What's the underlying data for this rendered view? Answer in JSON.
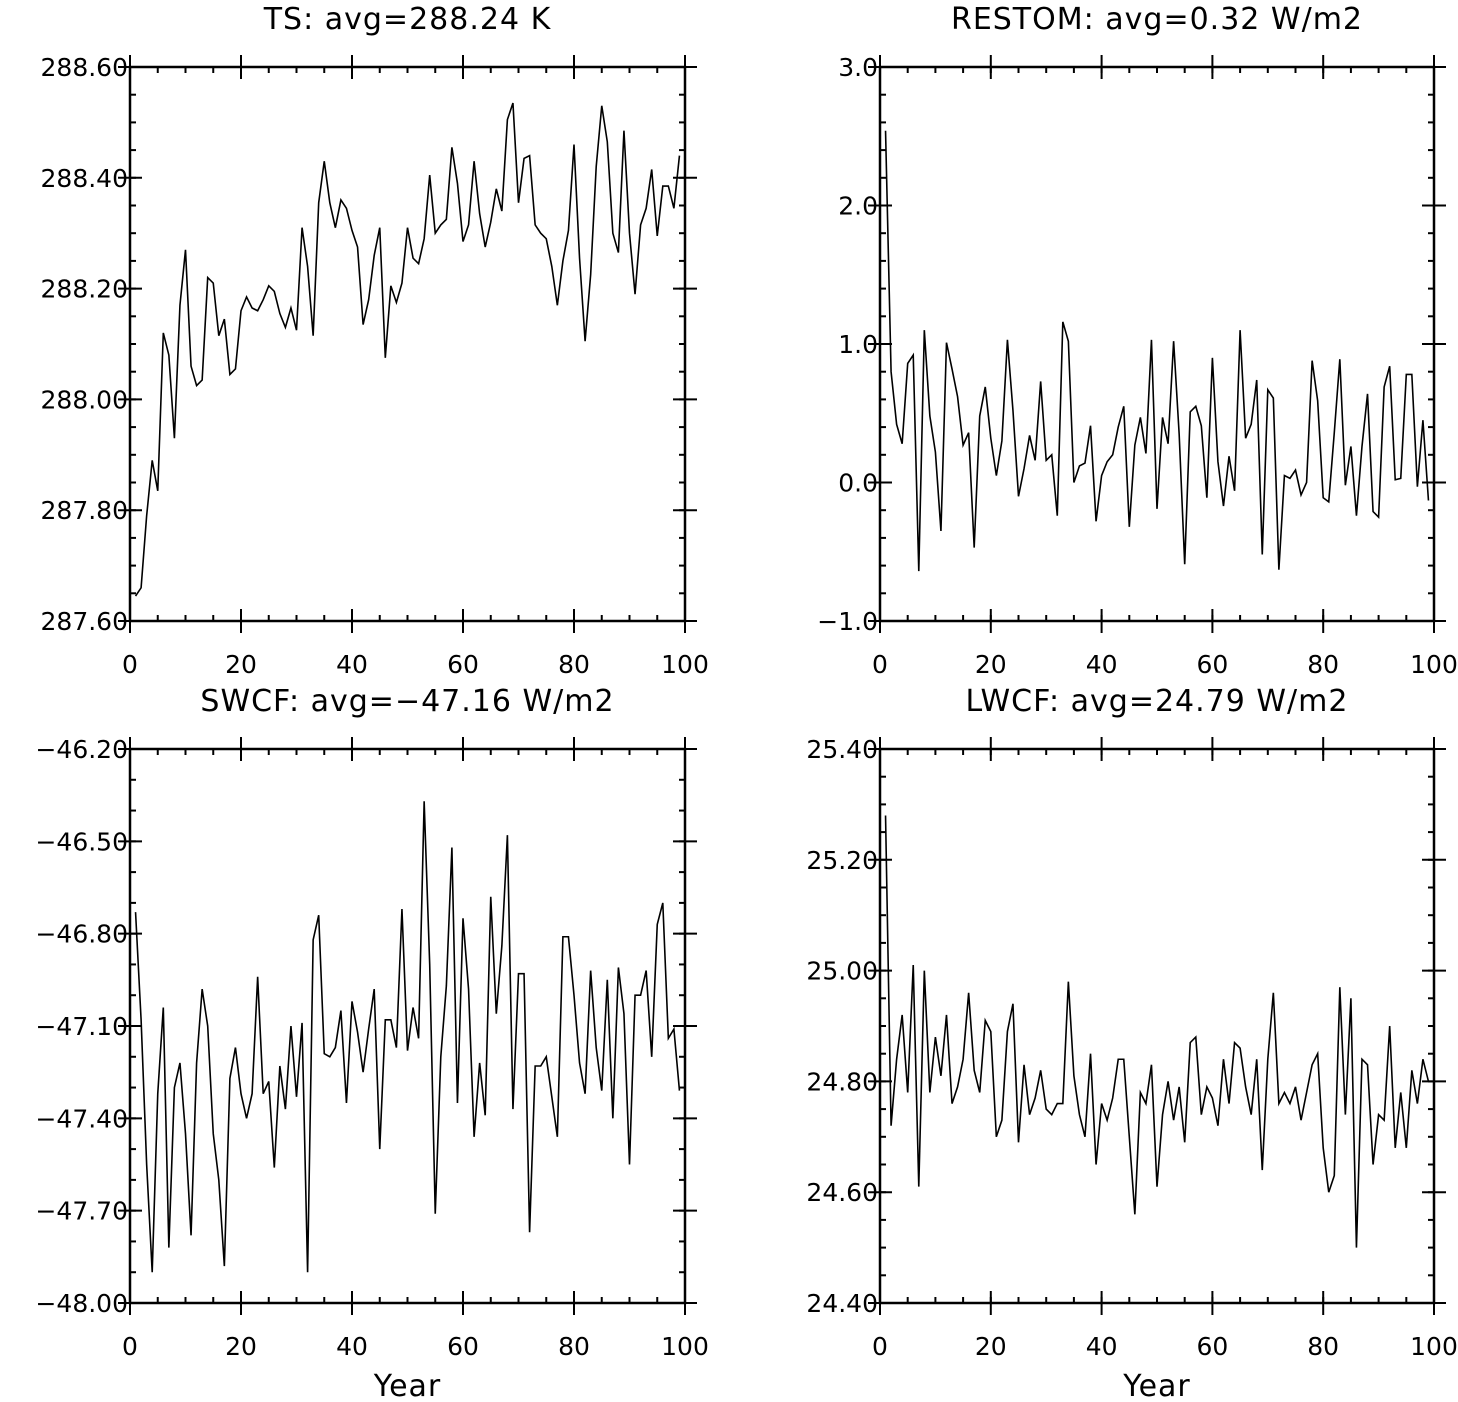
{
  "chart_data": [
    {
      "id": "ts",
      "type": "line",
      "title": "TS: avg=288.24 K",
      "xlabel": "",
      "ylabel": "",
      "xlim": [
        0,
        100
      ],
      "ylim": [
        287.6,
        288.6
      ],
      "xticks": [
        0,
        20,
        40,
        60,
        80,
        100
      ],
      "xtick_labels": [
        "0",
        "20",
        "40",
        "60",
        "80",
        "100"
      ],
      "yticks": [
        287.6,
        287.8,
        288.0,
        288.2,
        288.4,
        288.6
      ],
      "ytick_labels": [
        "287.60",
        "287.80",
        "288.00",
        "288.20",
        "288.40",
        "288.60"
      ],
      "y_minor_step": 0.05,
      "x_minor_step": 5,
      "grid": false,
      "series": [
        {
          "values": [
            287.645,
            287.66,
            287.79,
            287.89,
            287.835,
            288.12,
            288.08,
            287.93,
            288.17,
            288.27,
            288.06,
            288.025,
            288.035,
            288.22,
            288.21,
            288.115,
            288.145,
            288.045,
            288.055,
            288.16,
            288.185,
            288.165,
            288.16,
            288.18,
            288.205,
            288.195,
            288.155,
            288.13,
            288.165,
            288.125,
            288.31,
            288.24,
            288.115,
            288.355,
            288.43,
            288.355,
            288.31,
            288.36,
            288.345,
            288.305,
            288.275,
            288.135,
            288.18,
            288.26,
            288.31,
            288.075,
            288.205,
            288.175,
            288.21,
            288.31,
            288.255,
            288.245,
            288.29,
            288.405,
            288.3,
            288.315,
            288.325,
            288.455,
            288.39,
            288.285,
            288.315,
            288.43,
            288.335,
            288.275,
            288.32,
            288.38,
            288.34,
            288.505,
            288.535,
            288.355,
            288.435,
            288.44,
            288.315,
            288.3,
            288.29,
            288.24,
            288.17,
            288.25,
            288.305,
            288.46,
            288.255,
            288.105,
            288.225,
            288.42,
            288.53,
            288.465,
            288.3,
            288.265,
            288.485,
            288.3,
            288.19,
            288.315,
            288.345,
            288.415,
            288.295,
            288.385,
            288.385,
            288.345,
            288.44
          ]
        }
      ]
    },
    {
      "id": "restom",
      "type": "line",
      "title": "RESTOM: avg=0.32 W/m2",
      "xlabel": "",
      "ylabel": "",
      "xlim": [
        0,
        100
      ],
      "ylim": [
        -1.0,
        3.0
      ],
      "xticks": [
        0,
        20,
        40,
        60,
        80,
        100
      ],
      "xtick_labels": [
        "0",
        "20",
        "40",
        "60",
        "80",
        "100"
      ],
      "yticks": [
        -1.0,
        0.0,
        1.0,
        2.0,
        3.0
      ],
      "ytick_labels": [
        "−1.0",
        "0.0",
        "1.0",
        "2.0",
        "3.0"
      ],
      "y_minor_step": 0.2,
      "x_minor_step": 5,
      "grid": false,
      "series": [
        {
          "values": [
            2.54,
            0.8,
            0.42,
            0.28,
            0.86,
            0.92,
            -0.64,
            1.1,
            0.48,
            0.22,
            -0.35,
            1.01,
            0.82,
            0.62,
            0.27,
            0.36,
            -0.47,
            0.48,
            0.69,
            0.32,
            0.05,
            0.3,
            1.03,
            0.52,
            -0.1,
            0.1,
            0.34,
            0.16,
            0.73,
            0.16,
            0.2,
            -0.24,
            1.16,
            1.02,
            0.0,
            0.12,
            0.14,
            0.41,
            -0.28,
            0.05,
            0.15,
            0.2,
            0.4,
            0.55,
            -0.32,
            0.27,
            0.47,
            0.21,
            1.03,
            -0.19,
            0.47,
            0.28,
            1.02,
            0.35,
            -0.59,
            0.51,
            0.55,
            0.41,
            -0.11,
            0.9,
            0.15,
            -0.17,
            0.19,
            -0.06,
            1.1,
            0.32,
            0.42,
            0.74,
            -0.52,
            0.67,
            0.61,
            -0.63,
            0.05,
            0.03,
            0.09,
            -0.09,
            0.0,
            0.88,
            0.59,
            -0.11,
            -0.14,
            0.36,
            0.89,
            -0.02,
            0.26,
            -0.24,
            0.26,
            0.64,
            -0.21,
            -0.25,
            0.69,
            0.84,
            0.02,
            0.03,
            0.78,
            0.78,
            -0.03,
            0.45,
            -0.13
          ]
        }
      ]
    },
    {
      "id": "swcf",
      "type": "line",
      "title": "SWCF: avg=−47.16 W/m2",
      "xlabel": "Year",
      "ylabel": "",
      "xlim": [
        0,
        100
      ],
      "ylim": [
        -48.0,
        -46.2
      ],
      "xticks": [
        0,
        20,
        40,
        60,
        80,
        100
      ],
      "xtick_labels": [
        "0",
        "20",
        "40",
        "60",
        "80",
        "100"
      ],
      "yticks": [
        -48.0,
        -47.7,
        -47.4,
        -47.1,
        -46.8,
        -46.5,
        -46.2
      ],
      "ytick_labels": [
        "−48.00",
        "−47.70",
        "−47.40",
        "−47.10",
        "−46.80",
        "−46.50",
        "−46.20"
      ],
      "y_minor_step": 0.1,
      "x_minor_step": 5,
      "grid": false,
      "series": [
        {
          "values": [
            -46.73,
            -47.08,
            -47.55,
            -47.9,
            -47.32,
            -47.04,
            -47.82,
            -47.3,
            -47.22,
            -47.45,
            -47.78,
            -47.22,
            -46.98,
            -47.1,
            -47.45,
            -47.6,
            -47.88,
            -47.27,
            -47.17,
            -47.32,
            -47.4,
            -47.32,
            -46.94,
            -47.32,
            -47.28,
            -47.56,
            -47.23,
            -47.37,
            -47.1,
            -47.33,
            -47.09,
            -47.9,
            -46.82,
            -46.74,
            -47.19,
            -47.2,
            -47.17,
            -47.05,
            -47.35,
            -47.02,
            -47.12,
            -47.25,
            -47.11,
            -46.98,
            -47.5,
            -47.08,
            -47.08,
            -47.17,
            -46.72,
            -47.18,
            -47.04,
            -47.14,
            -46.37,
            -46.9,
            -47.71,
            -47.2,
            -46.97,
            -46.52,
            -47.35,
            -46.75,
            -46.98,
            -47.46,
            -47.22,
            -47.39,
            -46.68,
            -47.06,
            -46.84,
            -46.48,
            -47.37,
            -46.93,
            -46.93,
            -47.77,
            -47.23,
            -47.23,
            -47.2,
            -47.33,
            -47.46,
            -46.81,
            -46.81,
            -47.0,
            -47.22,
            -47.32,
            -46.92,
            -47.17,
            -47.31,
            -46.95,
            -47.4,
            -46.91,
            -47.06,
            -47.55,
            -47.0,
            -47.0,
            -46.92,
            -47.2,
            -46.77,
            -46.7,
            -47.14,
            -47.11,
            -47.31
          ]
        }
      ]
    },
    {
      "id": "lwcf",
      "type": "line",
      "title": "LWCF: avg=24.79 W/m2",
      "xlabel": "Year",
      "ylabel": "",
      "xlim": [
        0,
        100
      ],
      "ylim": [
        24.4,
        25.4
      ],
      "xticks": [
        0,
        20,
        40,
        60,
        80,
        100
      ],
      "xtick_labels": [
        "0",
        "20",
        "40",
        "60",
        "80",
        "100"
      ],
      "yticks": [
        24.4,
        24.6,
        24.8,
        25.0,
        25.2,
        25.4
      ],
      "ytick_labels": [
        "24.40",
        "24.60",
        "24.80",
        "25.00",
        "25.20",
        "25.40"
      ],
      "y_minor_step": 0.05,
      "x_minor_step": 5,
      "grid": false,
      "series": [
        {
          "values": [
            25.28,
            24.72,
            24.84,
            24.92,
            24.78,
            25.01,
            24.61,
            25.0,
            24.78,
            24.88,
            24.81,
            24.92,
            24.76,
            24.79,
            24.84,
            24.96,
            24.82,
            24.78,
            24.91,
            24.89,
            24.7,
            24.73,
            24.89,
            24.94,
            24.69,
            24.83,
            24.74,
            24.77,
            24.82,
            24.75,
            24.74,
            24.76,
            24.76,
            24.98,
            24.81,
            24.74,
            24.7,
            24.85,
            24.65,
            24.76,
            24.73,
            24.77,
            24.84,
            24.84,
            24.7,
            24.56,
            24.78,
            24.76,
            24.83,
            24.61,
            24.74,
            24.8,
            24.73,
            24.79,
            24.69,
            24.87,
            24.88,
            24.74,
            24.79,
            24.77,
            24.72,
            24.84,
            24.76,
            24.87,
            24.86,
            24.79,
            24.74,
            24.84,
            24.64,
            24.84,
            24.96,
            24.76,
            24.78,
            24.76,
            24.79,
            24.73,
            24.78,
            24.83,
            24.85,
            24.68,
            24.6,
            24.63,
            24.97,
            24.74,
            24.95,
            24.5,
            24.84,
            24.83,
            24.65,
            24.74,
            24.73,
            24.9,
            24.68,
            24.78,
            24.68,
            24.82,
            24.76,
            24.84,
            24.8
          ]
        }
      ]
    }
  ]
}
